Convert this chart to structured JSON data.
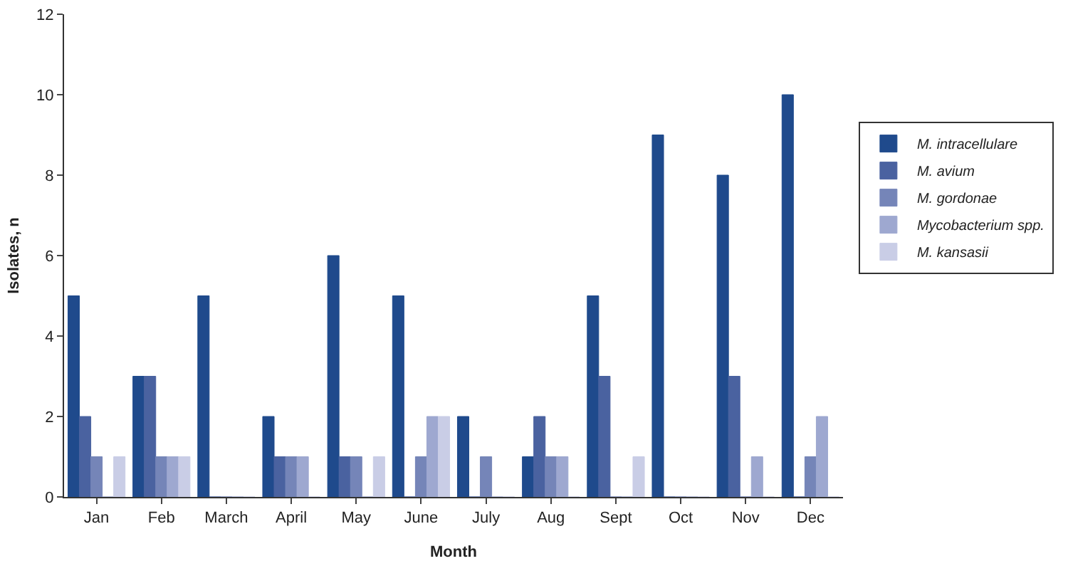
{
  "chart_data": {
    "type": "bar",
    "xlabel": "Month",
    "ylabel": "Isolates, n",
    "categories": [
      "Jan",
      "Feb",
      "March",
      "April",
      "May",
      "June",
      "July",
      "Aug",
      "Sept",
      "Oct",
      "Nov",
      "Dec"
    ],
    "series": [
      {
        "name": "M. intracellulare",
        "color": "#1f4a8c",
        "values": [
          5,
          3,
          5,
          2,
          6,
          5,
          2,
          1,
          5,
          9,
          8,
          10
        ]
      },
      {
        "name": "M. avium",
        "color": "#4a62a0",
        "values": [
          2,
          3,
          0,
          1,
          1,
          0,
          0,
          2,
          3,
          0,
          3,
          0
        ]
      },
      {
        "name": "M. gordonae",
        "color": "#7585b8",
        "values": [
          1,
          1,
          0,
          1,
          1,
          1,
          1,
          1,
          0,
          0,
          0,
          1
        ]
      },
      {
        "name": "Mycobacterium spp.",
        "color": "#9ea8d0",
        "values": [
          0,
          1,
          0,
          1,
          0,
          2,
          0,
          1,
          0,
          0,
          1,
          2
        ]
      },
      {
        "name": "M. kansasii",
        "color": "#c9cde6",
        "values": [
          1,
          1,
          0,
          0,
          1,
          2,
          0,
          0,
          1,
          0,
          0,
          0
        ]
      }
    ],
    "ylim": [
      0,
      12
    ],
    "yticks": [
      0,
      2,
      4,
      6,
      8,
      10,
      12
    ],
    "grid": false,
    "legend": "right"
  }
}
